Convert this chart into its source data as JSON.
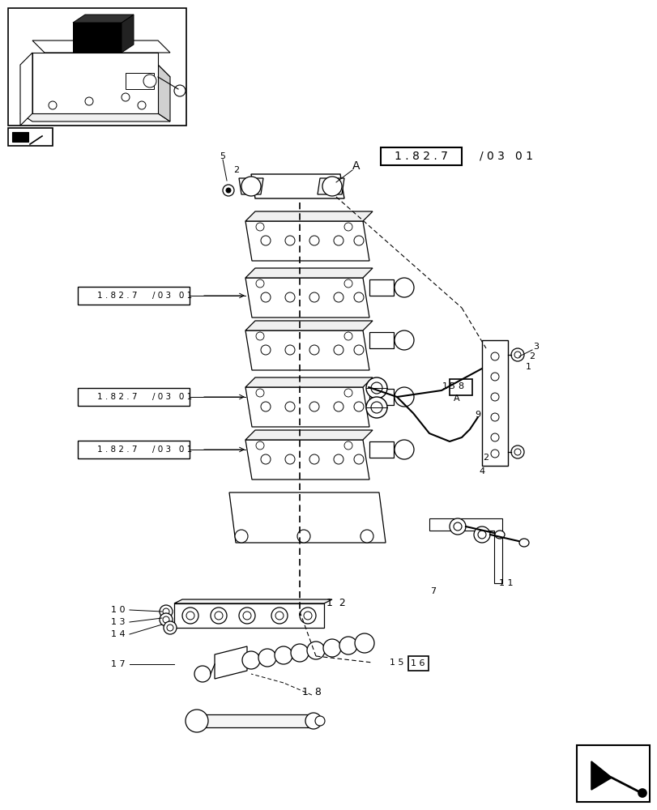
{
  "bg_color": "#ffffff",
  "line_color": "#000000",
  "figsize": [
    8.12,
    10.0
  ],
  "dpi": 100,
  "ref_label_box": "1 . 8 2 . 7",
  "ref_label_rest": "/ 0 3   0 1",
  "left_labels": [
    "1 . 8 2 . 7 / 0 3   0 1",
    "1 . 8 2 . 7 / 0 3   0 1",
    "1 . 8 2 . 7 / 0 3   0 1"
  ]
}
